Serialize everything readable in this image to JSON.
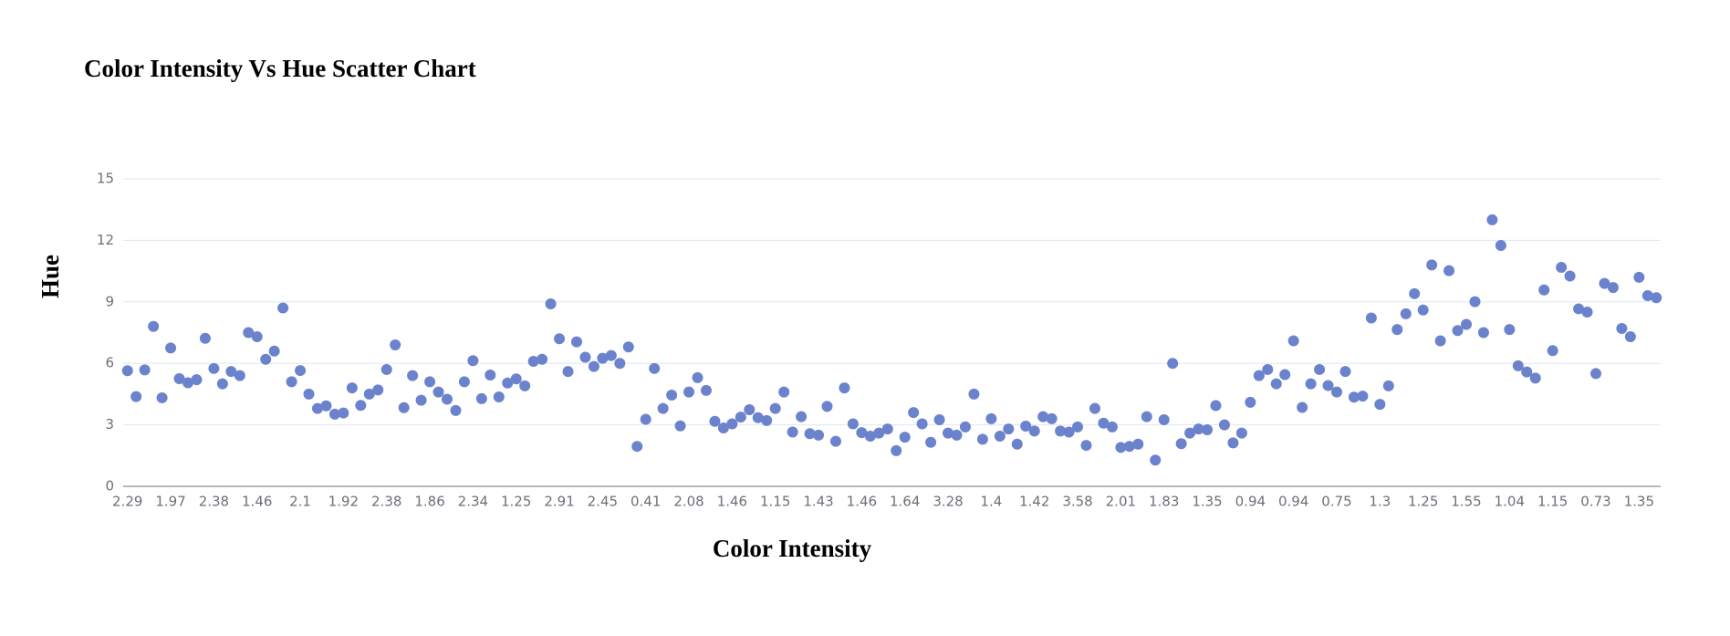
{
  "chart_data": {
    "type": "scatter",
    "title": "Color Intensity Vs Hue Scatter Chart",
    "x_label": "Color Intensity",
    "y_label": "Hue",
    "categories": [
      "2.29",
      null,
      null,
      null,
      null,
      "1.97",
      null,
      null,
      null,
      null,
      "2.38",
      null,
      null,
      null,
      null,
      "1.46",
      null,
      null,
      null,
      null,
      "2.1",
      null,
      null,
      null,
      null,
      "1.92",
      null,
      null,
      null,
      null,
      "2.38",
      null,
      null,
      null,
      null,
      "1.86",
      null,
      null,
      null,
      null,
      "2.34",
      null,
      null,
      null,
      null,
      "1.25",
      null,
      null,
      null,
      null,
      "2.91",
      null,
      null,
      null,
      null,
      "2.45",
      null,
      null,
      null,
      null,
      "0.41",
      null,
      null,
      null,
      null,
      "2.08",
      null,
      null,
      null,
      null,
      "1.46",
      null,
      null,
      null,
      null,
      "1.15",
      null,
      null,
      null,
      null,
      "1.43",
      null,
      null,
      null,
      null,
      "1.46",
      null,
      null,
      null,
      null,
      "1.64",
      null,
      null,
      null,
      null,
      "3.28",
      null,
      null,
      null,
      null,
      "1.4",
      null,
      null,
      null,
      null,
      "1.42",
      null,
      null,
      null,
      null,
      "3.58",
      null,
      null,
      null,
      null,
      "2.01",
      null,
      null,
      null,
      null,
      "1.83",
      null,
      null,
      null,
      null,
      "1.35",
      null,
      null,
      null,
      null,
      "0.94",
      null,
      null,
      null,
      null,
      "0.94",
      null,
      null,
      null,
      null,
      "0.75",
      null,
      null,
      null,
      null,
      "1.3",
      null,
      null,
      null,
      null,
      "1.25",
      null,
      null,
      null,
      null,
      "1.55",
      null,
      null,
      null,
      null,
      "1.04",
      null,
      null,
      null,
      null,
      "1.15",
      null,
      null,
      null,
      null,
      "0.73",
      null,
      null,
      null,
      null,
      "1.35",
      null,
      null
    ],
    "values": [
      5.64,
      4.38,
      5.68,
      7.8,
      4.32,
      6.75,
      5.25,
      5.05,
      5.2,
      7.22,
      5.75,
      5,
      5.6,
      5.4,
      7.5,
      7.3,
      6.2,
      6.6,
      8.7,
      5.1,
      5.65,
      4.5,
      3.8,
      3.93,
      3.52,
      3.58,
      4.8,
      3.95,
      4.5,
      4.7,
      5.7,
      6.9,
      3.84,
      5.4,
      4.2,
      5.1,
      4.6,
      4.25,
      3.7,
      5.1,
      6.13,
      4.28,
      5.43,
      4.36,
      5.04,
      5.24,
      4.9,
      6.1,
      6.2,
      8.9,
      7.2,
      5.6,
      7.05,
      6.3,
      5.85,
      6.25,
      6.38,
      6,
      6.8,
      1.95,
      3.27,
      5.75,
      3.8,
      4.45,
      2.95,
      4.6,
      5.3,
      4.68,
      3.17,
      2.85,
      3.05,
      3.38,
      3.74,
      3.35,
      3.21,
      3.8,
      4.6,
      2.65,
      3.4,
      2.57,
      2.5,
      3.9,
      2.2,
      4.8,
      3.05,
      2.62,
      2.45,
      2.6,
      2.8,
      1.74,
      2.4,
      3.6,
      3.05,
      2.15,
      3.25,
      2.6,
      2.5,
      2.9,
      4.5,
      2.3,
      3.3,
      2.45,
      2.8,
      2.06,
      2.94,
      2.7,
      3.4,
      3.3,
      2.7,
      2.65,
      2.9,
      2,
      3.8,
      3.08,
      2.9,
      1.9,
      1.95,
      2.06,
      3.4,
      1.28,
      3.25,
      6,
      2.08,
      2.6,
      2.8,
      2.76,
      3.94,
      3,
      2.12,
      2.6,
      4.1,
      5.4,
      5.7,
      5,
      5.45,
      7.1,
      3.85,
      5,
      5.7,
      4.92,
      4.6,
      5.6,
      4.35,
      4.4,
      8.21,
      4,
      4.9,
      7.65,
      8.42,
      9.4,
      8.6,
      10.8,
      7.1,
      10.52,
      7.6,
      7.9,
      9.01,
      7.5,
      13,
      11.75,
      7.65,
      5.88,
      5.58,
      5.28,
      9.58,
      6.62,
      10.68,
      10.26,
      8.66,
      8.5,
      5.5,
      9.9,
      9.7,
      7.7,
      7.3,
      10.2,
      9.3,
      9.2
    ],
    "color": "#6b83cc",
    "ylim": [
      0,
      15
    ],
    "yticks": [
      0,
      3,
      6,
      9,
      12,
      15
    ],
    "grid": true
  }
}
